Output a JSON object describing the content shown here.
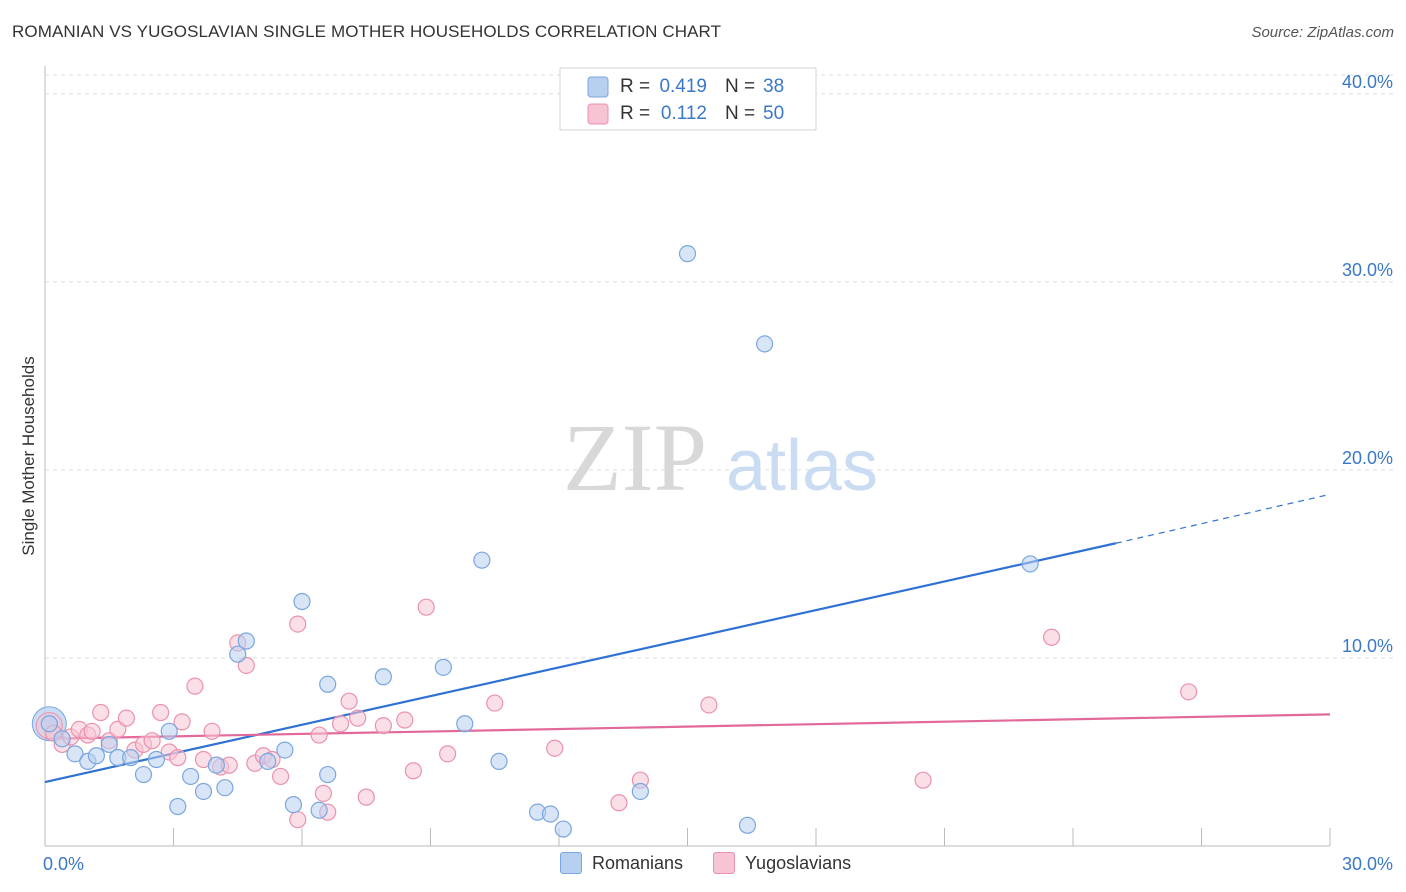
{
  "title": "ROMANIAN VS YUGOSLAVIAN SINGLE MOTHER HOUSEHOLDS CORRELATION CHART",
  "source": "Source: ZipAtlas.com",
  "watermark": {
    "zip": "ZIP",
    "atlas": "atlas"
  },
  "colors": {
    "romanians_fill": "#b8d0f0",
    "romanians_stroke": "#7aa6e0",
    "romanians_line": "#2f72d4",
    "yugoslavians_fill": "#f7c4d4",
    "yugoslavians_stroke": "#ea92ae",
    "yugoslavians_line": "#e2699a",
    "axis_text": "#3a78c8",
    "grid": "#dddddd"
  },
  "legend_top": {
    "rows": [
      {
        "r_label": "R =",
        "r_value": "0.419",
        "n_label": "N =",
        "n_value": "38"
      },
      {
        "r_label": "R =",
        "r_value": "0.112",
        "n_label": "N =",
        "n_value": "50"
      }
    ]
  },
  "legend_bottom": {
    "romanians": "Romanians",
    "yugoslavians": "Yugoslavians"
  },
  "chart_data": {
    "type": "scatter",
    "ylabel": "Single Mother Households",
    "xlim": [
      0,
      30
    ],
    "ylim": [
      0,
      41
    ],
    "x_ticks": [
      {
        "value": 0,
        "label": "0.0%"
      },
      {
        "value": 30,
        "label": "30.0%"
      }
    ],
    "y_ticks": [
      {
        "value": 10,
        "label": "10.0%"
      },
      {
        "value": 20,
        "label": "20.0%"
      },
      {
        "value": 30,
        "label": "30.0%"
      },
      {
        "value": 40,
        "label": "40.0%"
      }
    ],
    "legend_placement": "top-center",
    "series": [
      {
        "name": "Romanians",
        "R": 0.419,
        "N": 38,
        "trend": {
          "x0": 0,
          "y0": 3.4,
          "x1": 25,
          "y1": 16.1,
          "x_dash_end": 30,
          "y_dash_end": 18.7
        },
        "points": [
          [
            0.1,
            6.5
          ],
          [
            0.4,
            5.7
          ],
          [
            0.7,
            4.9
          ],
          [
            1.0,
            4.5
          ],
          [
            1.2,
            4.8
          ],
          [
            1.5,
            5.4
          ],
          [
            1.7,
            4.7
          ],
          [
            2.0,
            4.7
          ],
          [
            2.3,
            3.8
          ],
          [
            2.6,
            4.6
          ],
          [
            2.9,
            6.1
          ],
          [
            3.1,
            2.1
          ],
          [
            3.4,
            3.7
          ],
          [
            3.7,
            2.9
          ],
          [
            4.0,
            4.3
          ],
          [
            4.2,
            3.1
          ],
          [
            4.5,
            10.2
          ],
          [
            4.7,
            10.9
          ],
          [
            5.2,
            4.5
          ],
          [
            5.6,
            5.1
          ],
          [
            5.8,
            2.2
          ],
          [
            6.0,
            13.0
          ],
          [
            6.4,
            1.9
          ],
          [
            6.6,
            3.8
          ],
          [
            6.6,
            8.6
          ],
          [
            7.9,
            9.0
          ],
          [
            9.3,
            9.5
          ],
          [
            9.8,
            6.5
          ],
          [
            10.2,
            15.2
          ],
          [
            10.6,
            4.5
          ],
          [
            11.5,
            1.8
          ],
          [
            11.8,
            1.7
          ],
          [
            12.1,
            0.9
          ],
          [
            13.9,
            2.9
          ],
          [
            15.0,
            31.5
          ],
          [
            16.4,
            1.1
          ],
          [
            16.8,
            26.7
          ],
          [
            23.0,
            15.0
          ]
        ]
      },
      {
        "name": "Yugoslavians",
        "R": 0.112,
        "N": 50,
        "trend": {
          "x0": 0,
          "y0": 5.7,
          "x1": 30,
          "y1": 7.0
        },
        "points": [
          [
            0.2,
            6.0
          ],
          [
            0.4,
            5.4
          ],
          [
            0.6,
            5.8
          ],
          [
            0.8,
            6.2
          ],
          [
            1.0,
            5.9
          ],
          [
            1.1,
            6.1
          ],
          [
            1.3,
            7.1
          ],
          [
            1.5,
            5.6
          ],
          [
            1.7,
            6.2
          ],
          [
            1.9,
            6.8
          ],
          [
            2.1,
            5.1
          ],
          [
            2.3,
            5.4
          ],
          [
            2.5,
            5.6
          ],
          [
            2.7,
            7.1
          ],
          [
            2.9,
            5.0
          ],
          [
            3.1,
            4.7
          ],
          [
            3.2,
            6.6
          ],
          [
            3.5,
            8.5
          ],
          [
            3.7,
            4.6
          ],
          [
            3.9,
            6.1
          ],
          [
            4.1,
            4.2
          ],
          [
            4.3,
            4.3
          ],
          [
            4.5,
            10.8
          ],
          [
            4.7,
            9.6
          ],
          [
            4.9,
            4.4
          ],
          [
            5.1,
            4.8
          ],
          [
            5.3,
            4.6
          ],
          [
            5.5,
            3.7
          ],
          [
            5.9,
            1.4
          ],
          [
            5.9,
            11.8
          ],
          [
            6.4,
            5.9
          ],
          [
            6.5,
            2.8
          ],
          [
            6.6,
            1.8
          ],
          [
            6.9,
            6.5
          ],
          [
            7.1,
            7.7
          ],
          [
            7.3,
            6.8
          ],
          [
            7.5,
            2.6
          ],
          [
            7.9,
            6.4
          ],
          [
            8.4,
            6.7
          ],
          [
            8.6,
            4.0
          ],
          [
            8.9,
            12.7
          ],
          [
            9.4,
            4.9
          ],
          [
            10.5,
            7.6
          ],
          [
            11.9,
            5.2
          ],
          [
            13.4,
            2.3
          ],
          [
            13.9,
            3.5
          ],
          [
            15.5,
            7.5
          ],
          [
            20.5,
            3.5
          ],
          [
            23.5,
            11.1
          ],
          [
            26.7,
            8.2
          ]
        ]
      }
    ]
  }
}
